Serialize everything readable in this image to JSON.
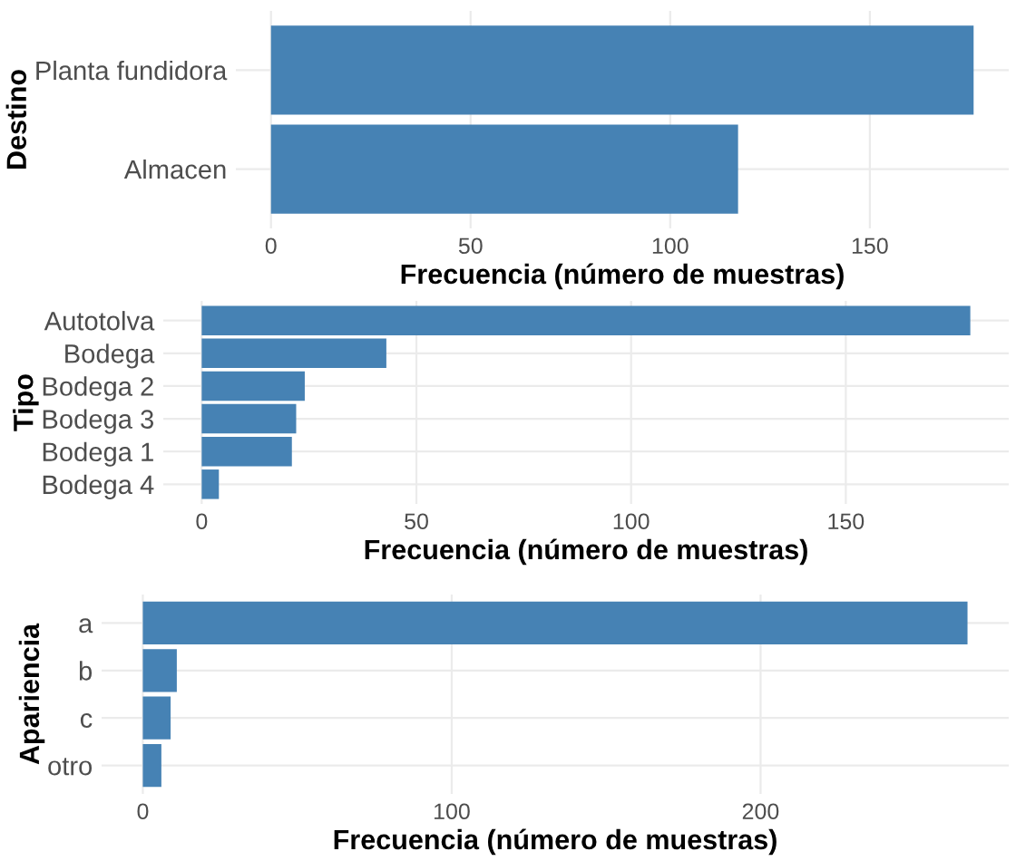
{
  "chart_data": [
    {
      "type": "bar",
      "orientation": "horizontal",
      "categories": [
        "Planta fundidora",
        "Almacen"
      ],
      "values": [
        176,
        117
      ],
      "color": "#4682b4",
      "xlabel": "Frecuencia (número de muestras)",
      "ylabel": "Destino",
      "xlim": [
        -8.8,
        184.8
      ],
      "xticks": [
        0,
        50,
        100,
        150
      ],
      "grid": true
    },
    {
      "type": "bar",
      "orientation": "horizontal",
      "categories": [
        "Autotolva",
        "Bodega",
        "Bodega 2",
        "Bodega 3",
        "Bodega 1",
        "Bodega 4"
      ],
      "values": [
        179,
        43,
        24,
        22,
        21,
        4
      ],
      "color": "#4682b4",
      "xlabel": "Frecuencia (número de muestras)",
      "ylabel": "Tipo",
      "xlim": [
        -8.95,
        187.95
      ],
      "xticks": [
        0,
        50,
        100,
        150
      ],
      "grid": true
    },
    {
      "type": "bar",
      "orientation": "horizontal",
      "categories": [
        "a",
        "b",
        "c",
        "otro"
      ],
      "values": [
        267,
        11,
        9,
        6
      ],
      "color": "#4682b4",
      "xlabel": "Frecuencia (número de muestras)",
      "ylabel": "Apariencia",
      "xlim": [
        -13.35,
        280.35
      ],
      "xticks": [
        0,
        100,
        200
      ],
      "grid": true
    }
  ]
}
